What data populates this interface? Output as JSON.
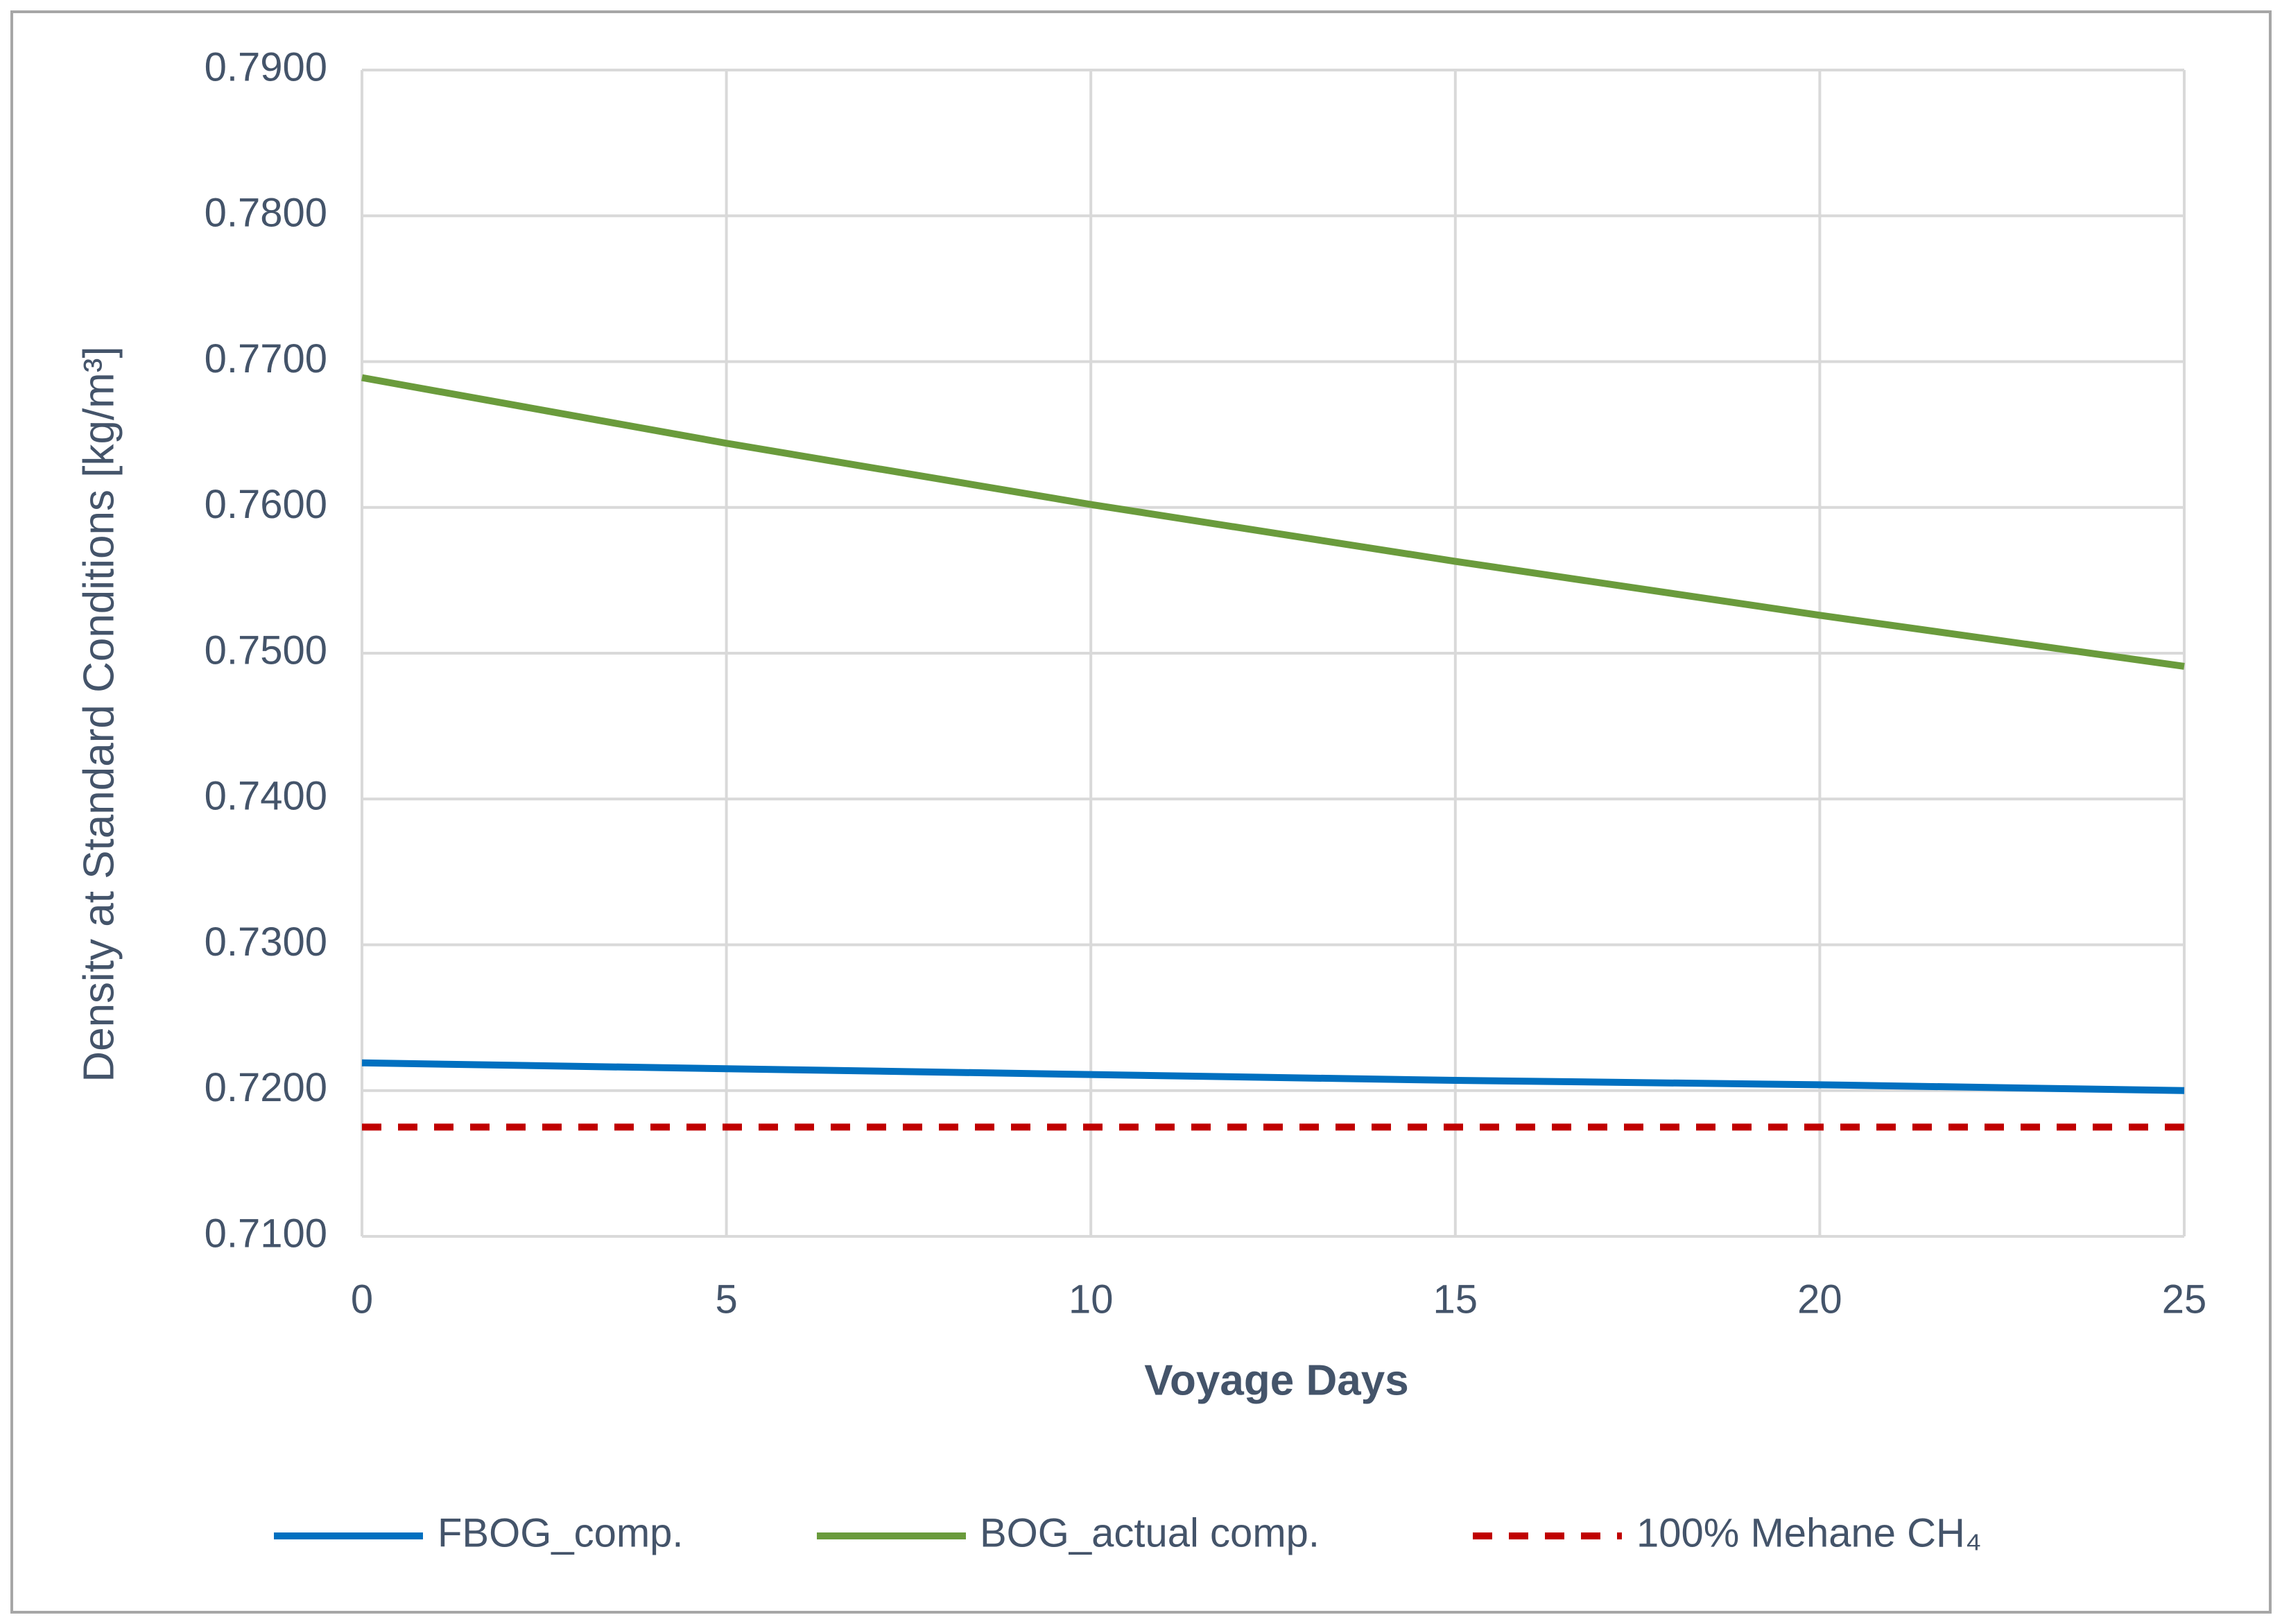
{
  "chart_data": {
    "type": "line",
    "x_label": "Voyage Days",
    "y_label": "Density at Standard Conditions  [kg/m³]",
    "x": [
      0,
      5,
      10,
      15,
      20,
      25
    ],
    "series": [
      {
        "name": "FBOG_comp.",
        "color": "#0070c0",
        "values": [
          0.7219,
          0.7215,
          0.7211,
          0.7207,
          0.7204,
          0.72
        ]
      },
      {
        "name": "BOG_actual comp.",
        "color": "#6a9b3c",
        "values": [
          0.7689,
          0.7644,
          0.7602,
          0.7563,
          0.7526,
          0.7491
        ]
      },
      {
        "name": "100% Mehane CH₄",
        "color": "#c00000",
        "dashed": true,
        "values": [
          0.7175,
          0.7175,
          0.7175,
          0.7175,
          0.7175,
          0.7175
        ]
      }
    ],
    "xlim": [
      0,
      25
    ],
    "xticks": [
      0,
      5,
      10,
      15,
      20,
      25
    ],
    "ylim": [
      0.71,
      0.79
    ],
    "yticks": [
      {
        "value": 0.71,
        "label": "0.7100"
      },
      {
        "value": 0.72,
        "label": "0.7200"
      },
      {
        "value": 0.73,
        "label": "0.7300"
      },
      {
        "value": 0.74,
        "label": "0.7400"
      },
      {
        "value": 0.75,
        "label": "0.7500"
      },
      {
        "value": 0.76,
        "label": "0.7600"
      },
      {
        "value": 0.77,
        "label": "0.7700"
      },
      {
        "value": 0.78,
        "label": "0.7800"
      },
      {
        "value": 0.79,
        "label": "0.7900"
      }
    ],
    "grid": true,
    "legend": "bottom"
  }
}
